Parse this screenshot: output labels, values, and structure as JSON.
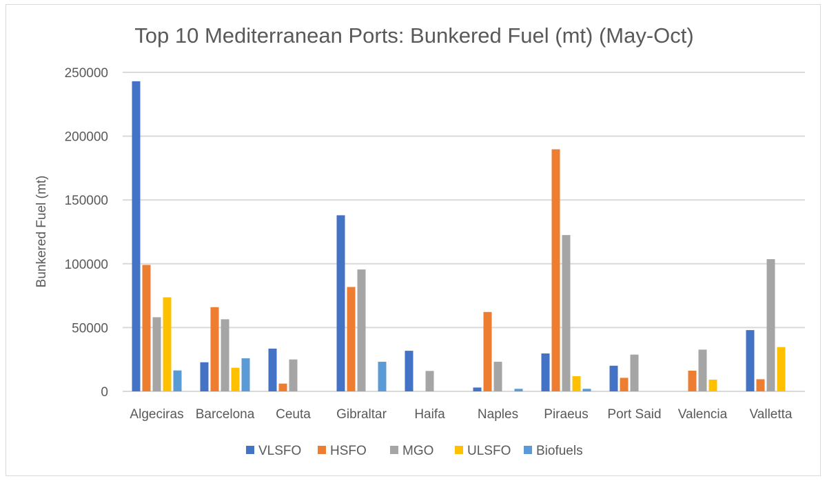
{
  "chart_data": {
    "type": "bar",
    "title": "Top 10 Mediterranean Ports: Bunkered Fuel (mt) (May-Oct)",
    "xlabel": "",
    "ylabel": "Bunkered Fuel (mt)",
    "ylim": [
      0,
      250000
    ],
    "yticks": [
      "0",
      "50000",
      "100000",
      "150000",
      "200000",
      "250000"
    ],
    "grid": true,
    "legend": "bottom",
    "categories": [
      "Algeciras",
      "Barcelona",
      "Ceuta",
      "Gibraltar",
      "Haifa",
      "Naples",
      "Piraeus",
      "Port Said",
      "Valencia",
      "Valletta"
    ],
    "series": [
      {
        "name": "VLSFO",
        "color": "#4472C4",
        "values": [
          243000,
          22800,
          33500,
          138000,
          31800,
          3000,
          29700,
          20100,
          0,
          48000
        ]
      },
      {
        "name": "HSFO",
        "color": "#ED7D31",
        "values": [
          99100,
          66000,
          6100,
          81800,
          0,
          62200,
          189700,
          10600,
          16200,
          9500
        ]
      },
      {
        "name": "MGO",
        "color": "#A5A5A5",
        "values": [
          58100,
          56500,
          25000,
          95500,
          16000,
          23200,
          122500,
          28800,
          32700,
          103600
        ]
      },
      {
        "name": "ULSFO",
        "color": "#FFC000",
        "values": [
          73700,
          18500,
          0,
          0,
          0,
          0,
          11900,
          0,
          9200,
          34700
        ]
      },
      {
        "name": "Biofuels",
        "color": "#5B9BD5",
        "values": [
          16400,
          25900,
          0,
          23200,
          0,
          2000,
          2000,
          0,
          0,
          0
        ]
      }
    ]
  }
}
